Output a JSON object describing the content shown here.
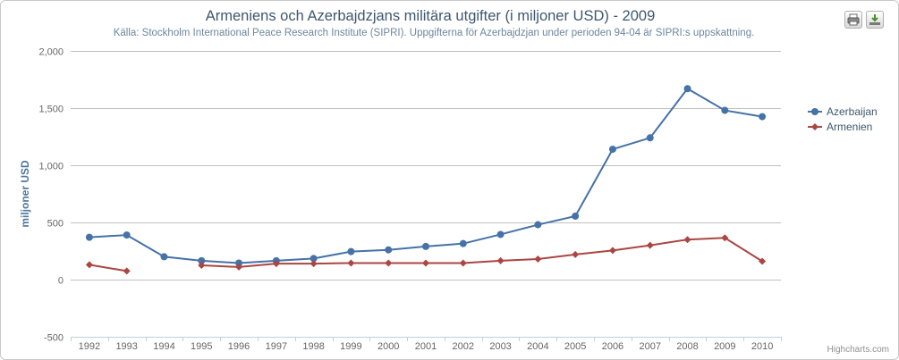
{
  "chart_data": {
    "type": "line",
    "title": "Armeniens och Azerbajdzjans militära utgifter (i miljoner USD) - 2009",
    "subtitle": "Källa: Stockholm International Peace Research Institute (SIPRI). Uppgifterna för Azerbajdzjan under perioden 94-04 är SIPRI:s uppskattning.",
    "ylabel": "miljoner USD",
    "xlabel": "",
    "ylim": [
      -500,
      2000
    ],
    "yticks": [
      -500,
      0,
      500,
      1000,
      1500,
      2000
    ],
    "ytick_labels": [
      "-500",
      "0",
      "500",
      "1,000",
      "1,500",
      "2,000"
    ],
    "grid": true,
    "legend_position": "right",
    "categories": [
      "1992",
      "1993",
      "1994",
      "1995",
      "1996",
      "1997",
      "1998",
      "1999",
      "2000",
      "2001",
      "2002",
      "2003",
      "2004",
      "2005",
      "2006",
      "2007",
      "2008",
      "2009",
      "2010"
    ],
    "series": [
      {
        "name": "Azerbaijan",
        "color": "#4572a7",
        "marker": "circle",
        "values": [
          370,
          390,
          200,
          165,
          145,
          165,
          185,
          245,
          260,
          290,
          315,
          395,
          480,
          555,
          1140,
          1240,
          1670,
          1480,
          1425
        ]
      },
      {
        "name": "Armenien",
        "color": "#aa4643",
        "marker": "diamond",
        "values": [
          130,
          75,
          null,
          125,
          110,
          140,
          140,
          145,
          145,
          145,
          145,
          165,
          180,
          220,
          255,
          300,
          350,
          365,
          160
        ]
      }
    ]
  },
  "credits": "Highcharts.com",
  "toolbar": {
    "print_icon": "printer-icon",
    "export_icon": "download-icon"
  }
}
